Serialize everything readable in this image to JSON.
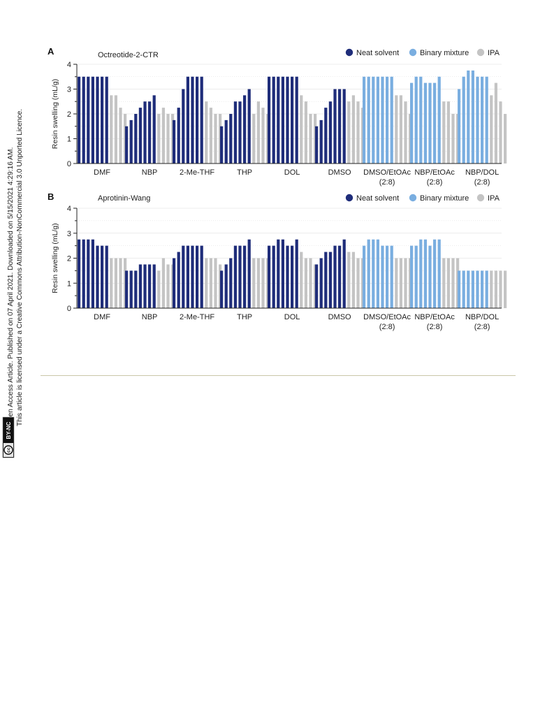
{
  "sidebar": {
    "line1": "Open Access Article. Published on 07 April 2021. Downloaded on 5/15/2021 4:29:16 AM.",
    "line2": "This article is licensed under a Creative Commons Attribution-NonCommercial 3.0 Unported Licence.",
    "badge_cc": "cc",
    "badge_license": "BY-NC"
  },
  "colors": {
    "neat": "#1f2d7a",
    "binary": "#7aaee0",
    "ipa": "#c4c4c4",
    "grid": "#d9d9d9",
    "axis": "#222222"
  },
  "chart_data": [
    {
      "panel_label": "A",
      "type": "bar",
      "title": "Octreotide-2-CTR",
      "ylabel": "Resin swelling (mL/g)",
      "ylim": [
        0,
        4
      ],
      "yticks": [
        "0",
        "1",
        "2",
        "3",
        "4"
      ],
      "grid": true,
      "legend_position": "top-right",
      "legend": [
        {
          "label": "Neat solvent",
          "kind": "neat"
        },
        {
          "label": "Binary mixture",
          "kind": "binary"
        },
        {
          "label": "IPA",
          "kind": "ipa"
        }
      ],
      "groups": [
        {
          "label": "DMF",
          "label2": "",
          "kind": "neat",
          "solvent": [
            3.5,
            3.5,
            3.5,
            3.5,
            3.5,
            3.5,
            3.5
          ],
          "ipa": [
            2.75,
            2.75,
            2.25,
            2.0
          ]
        },
        {
          "label": "NBP",
          "label2": "",
          "kind": "neat",
          "solvent": [
            1.5,
            1.75,
            2.0,
            2.25,
            2.5,
            2.5,
            2.75
          ],
          "ipa": [
            2.0,
            2.25,
            2.0,
            2.0
          ]
        },
        {
          "label": "2-Me-THF",
          "label2": "",
          "kind": "neat",
          "solvent": [
            1.75,
            2.25,
            3.0,
            3.5,
            3.5,
            3.5,
            3.5
          ],
          "ipa": [
            2.5,
            2.25,
            2.0,
            2.0
          ]
        },
        {
          "label": "THP",
          "label2": "",
          "kind": "neat",
          "solvent": [
            1.5,
            1.75,
            2.0,
            2.5,
            2.5,
            2.75,
            3.0
          ],
          "ipa": [
            2.0,
            2.5,
            2.25,
            2.0
          ]
        },
        {
          "label": "DOL",
          "label2": "",
          "kind": "neat",
          "solvent": [
            3.5,
            3.5,
            3.5,
            3.5,
            3.5,
            3.5,
            3.5
          ],
          "ipa": [
            2.75,
            2.5,
            2.0,
            2.0
          ]
        },
        {
          "label": "DMSO",
          "label2": "",
          "kind": "neat",
          "solvent": [
            1.5,
            1.75,
            2.25,
            2.5,
            3.0,
            3.0,
            3.0
          ],
          "ipa": [
            2.5,
            2.75,
            2.5,
            2.25
          ]
        },
        {
          "label": "DMSO/EtOAc",
          "label2": "(2:8)",
          "kind": "binary",
          "solvent": [
            3.5,
            3.5,
            3.5,
            3.5,
            3.5,
            3.5,
            3.5
          ],
          "ipa": [
            2.75,
            2.75,
            2.5,
            2.0
          ]
        },
        {
          "label": "NBP/EtOAc",
          "label2": "(2:8)",
          "kind": "binary",
          "solvent": [
            3.25,
            3.5,
            3.5,
            3.25,
            3.25,
            3.25,
            3.5
          ],
          "ipa": [
            2.5,
            2.5,
            2.0,
            2.0
          ]
        },
        {
          "label": "NBP/DOL",
          "label2": "(2:8)",
          "kind": "binary",
          "solvent": [
            3.0,
            3.5,
            3.75,
            3.75,
            3.5,
            3.5,
            3.5
          ],
          "ipa": [
            2.75,
            3.25,
            2.5,
            2.0
          ]
        }
      ]
    },
    {
      "panel_label": "B",
      "type": "bar",
      "title": "Aprotinin-Wang",
      "ylabel": "Resin swelling (mL/g)",
      "ylim": [
        0,
        4
      ],
      "yticks": [
        "0",
        "1",
        "2",
        "3",
        "4"
      ],
      "grid": true,
      "legend_position": "top-right",
      "legend": [
        {
          "label": "Neat solvent",
          "kind": "neat"
        },
        {
          "label": "Binary mixture",
          "kind": "binary"
        },
        {
          "label": "IPA",
          "kind": "ipa"
        }
      ],
      "groups": [
        {
          "label": "DMF",
          "label2": "",
          "kind": "neat",
          "solvent": [
            2.75,
            2.75,
            2.75,
            2.75,
            2.5,
            2.5,
            2.5
          ],
          "ipa": [
            2.0,
            2.0,
            2.0,
            2.0
          ]
        },
        {
          "label": "NBP",
          "label2": "",
          "kind": "neat",
          "solvent": [
            1.5,
            1.5,
            1.5,
            1.75,
            1.75,
            1.75,
            1.75
          ],
          "ipa": [
            1.5,
            2.0,
            1.75,
            1.75
          ]
        },
        {
          "label": "2-Me-THF",
          "label2": "",
          "kind": "neat",
          "solvent": [
            2.0,
            2.25,
            2.5,
            2.5,
            2.5,
            2.5,
            2.5
          ],
          "ipa": [
            2.0,
            2.0,
            2.0,
            1.75
          ]
        },
        {
          "label": "THP",
          "label2": "",
          "kind": "neat",
          "solvent": [
            1.5,
            1.75,
            2.0,
            2.5,
            2.5,
            2.5,
            2.75
          ],
          "ipa": [
            2.0,
            2.0,
            2.0,
            2.0
          ]
        },
        {
          "label": "DOL",
          "label2": "",
          "kind": "neat",
          "solvent": [
            2.5,
            2.5,
            2.75,
            2.75,
            2.5,
            2.5,
            2.75
          ],
          "ipa": [
            2.25,
            2.0,
            2.0,
            1.75
          ]
        },
        {
          "label": "DMSO",
          "label2": "",
          "kind": "neat",
          "solvent": [
            1.75,
            2.0,
            2.25,
            2.25,
            2.5,
            2.5,
            2.75
          ],
          "ipa": [
            2.25,
            2.25,
            2.0,
            2.0
          ]
        },
        {
          "label": "DMSO/EtOAc",
          "label2": "(2:8)",
          "kind": "binary",
          "solvent": [
            2.5,
            2.75,
            2.75,
            2.75,
            2.5,
            2.5,
            2.5
          ],
          "ipa": [
            2.0,
            2.0,
            2.0,
            2.0
          ]
        },
        {
          "label": "NBP/EtOAc",
          "label2": "(2:8)",
          "kind": "binary",
          "solvent": [
            2.5,
            2.5,
            2.75,
            2.75,
            2.5,
            2.75,
            2.75
          ],
          "ipa": [
            2.0,
            2.0,
            2.0,
            2.0
          ]
        },
        {
          "label": "NBP/DOL",
          "label2": "(2:8)",
          "kind": "binary",
          "solvent": [
            1.5,
            1.5,
            1.5,
            1.5,
            1.5,
            1.5,
            1.5
          ],
          "ipa": [
            1.5,
            1.5,
            1.5,
            1.5
          ]
        }
      ]
    }
  ]
}
